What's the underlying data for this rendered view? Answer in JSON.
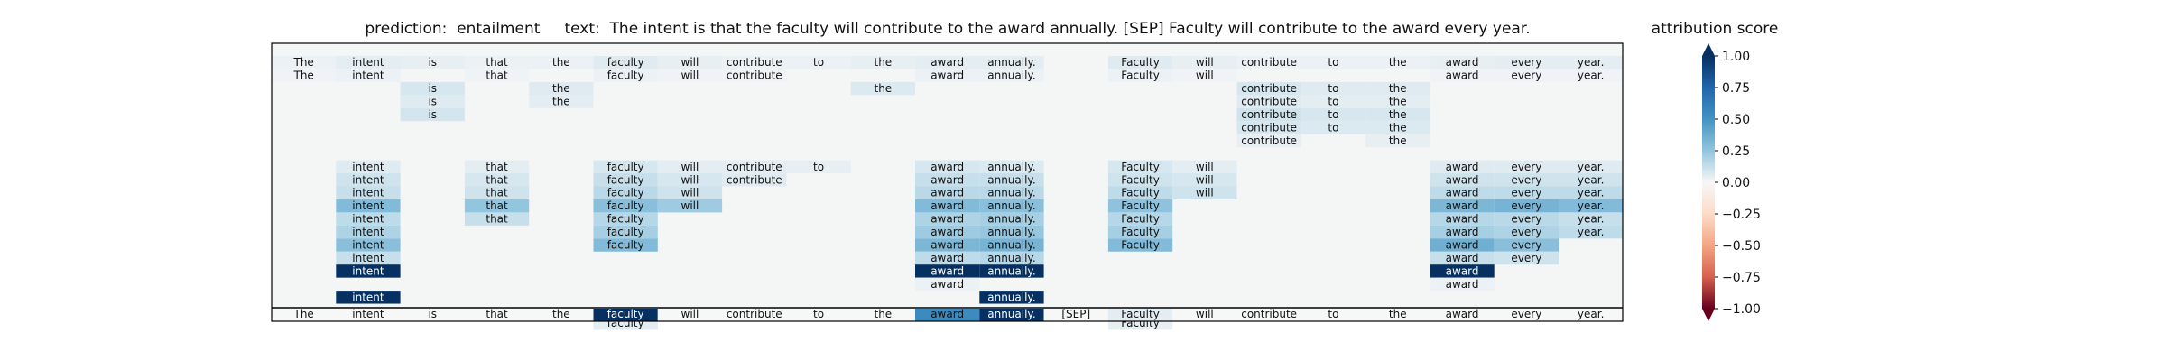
{
  "header": {
    "prediction_label": "prediction:",
    "prediction_value": "entailment",
    "text_label": "text:",
    "text_value": "The intent is that the faculty will contribute to the award annually. [SEP] Faculty will contribute to the award every year."
  },
  "chart_data": {
    "type": "heatmap",
    "tokens": [
      "The",
      "intent",
      "is",
      "that",
      "the",
      "faculty",
      "will",
      "contribute",
      "to",
      "the",
      "award",
      "annually.",
      "[SEP]",
      "Faculty",
      "will",
      "contribute",
      "to",
      "the",
      "award",
      "every",
      "year."
    ],
    "layers": [
      {
        "c": [
          0,
          1,
          2,
          3,
          4,
          5,
          6,
          7,
          8,
          9,
          10,
          11,
          13,
          14,
          15,
          16,
          17,
          18,
          19,
          20
        ],
        "v": [
          0.03,
          0.05,
          0.04,
          0.03,
          0.03,
          0.06,
          0.04,
          0.03,
          0.03,
          0.04,
          0.05,
          0.05,
          0.06,
          0.04,
          0.03,
          0.03,
          0.03,
          0.04,
          0.05,
          0.05
        ]
      },
      {
        "c": [
          0,
          1,
          3,
          5,
          6,
          7,
          10,
          11,
          13,
          14,
          18,
          19,
          20
        ],
        "v": [
          0.02,
          0.03,
          0.02,
          0.03,
          0.02,
          0.02,
          0.03,
          0.03,
          0.03,
          0.02,
          0.02,
          0.02,
          0.02
        ]
      },
      {
        "c": [
          2,
          4,
          9,
          15,
          16,
          17
        ],
        "v": [
          0.08,
          0.06,
          0.07,
          0.08,
          0.06,
          0.06
        ]
      },
      {
        "c": [
          2,
          4,
          15,
          16,
          17
        ],
        "v": [
          0.06,
          0.05,
          0.06,
          0.05,
          0.05
        ]
      },
      {
        "c": [
          2,
          15,
          16,
          17
        ],
        "v": [
          0.09,
          0.1,
          0.08,
          0.08
        ]
      },
      {
        "c": [
          15,
          16,
          17
        ],
        "v": [
          0.08,
          0.07,
          0.07
        ]
      },
      {
        "c": [
          15,
          17
        ],
        "v": [
          0.04,
          0.04
        ]
      },
      {
        "c": [],
        "v": []
      },
      {
        "c": [
          1,
          3,
          5,
          6,
          7,
          8,
          10,
          11,
          13,
          14,
          18,
          19,
          20
        ],
        "v": [
          0.06,
          0.05,
          0.08,
          0.05,
          0.05,
          0.04,
          0.08,
          0.07,
          0.08,
          0.05,
          0.06,
          0.06,
          0.06
        ]
      },
      {
        "c": [
          1,
          3,
          5,
          6,
          7,
          10,
          11,
          13,
          14,
          18,
          19,
          20
        ],
        "v": [
          0.1,
          0.08,
          0.12,
          0.08,
          0.06,
          0.12,
          0.12,
          0.1,
          0.08,
          0.1,
          0.1,
          0.1
        ]
      },
      {
        "c": [
          1,
          3,
          5,
          6,
          10,
          11,
          13,
          14,
          18,
          19,
          20
        ],
        "v": [
          0.12,
          0.1,
          0.15,
          0.1,
          0.15,
          0.15,
          0.14,
          0.1,
          0.14,
          0.14,
          0.14
        ]
      },
      {
        "c": [
          1,
          3,
          5,
          6,
          10,
          11,
          13,
          18,
          19,
          20
        ],
        "v": [
          0.3,
          0.25,
          0.28,
          0.22,
          0.3,
          0.28,
          0.26,
          0.32,
          0.34,
          0.3
        ]
      },
      {
        "c": [
          1,
          3,
          5,
          10,
          11,
          13,
          18,
          19,
          20
        ],
        "v": [
          0.14,
          0.12,
          0.16,
          0.18,
          0.2,
          0.16,
          0.16,
          0.15,
          0.12
        ]
      },
      {
        "c": [
          1,
          5,
          10,
          11,
          13,
          18,
          19,
          20
        ],
        "v": [
          0.18,
          0.2,
          0.22,
          0.24,
          0.2,
          0.2,
          0.18,
          0.14
        ]
      },
      {
        "c": [
          1,
          5,
          10,
          11,
          13,
          18,
          19
        ],
        "v": [
          0.28,
          0.3,
          0.32,
          0.34,
          0.3,
          0.36,
          0.28
        ]
      },
      {
        "c": [
          1,
          10,
          11,
          18,
          19
        ],
        "v": [
          0.12,
          0.14,
          0.16,
          0.12,
          0.1
        ]
      },
      {
        "c": [
          1,
          10,
          11,
          18
        ],
        "v": [
          1.0,
          1.0,
          1.0,
          1.0
        ]
      },
      {
        "c": [
          10,
          18
        ],
        "v": [
          0.03,
          0.03
        ]
      },
      {
        "c": [
          1,
          11
        ],
        "v": [
          1.0,
          1.0
        ]
      },
      {
        "c": [],
        "v": []
      },
      {
        "c": [
          5,
          13
        ],
        "v": [
          0.05,
          0.04
        ]
      }
    ],
    "attribution": [
      0.0,
      0.0,
      0.0,
      0.0,
      0.0,
      1.0,
      0.0,
      0.0,
      0.0,
      0.0,
      0.55,
      1.0,
      0.0,
      0.05,
      0.0,
      0.0,
      0.0,
      0.0,
      0.0,
      0.0,
      0.0
    ],
    "colorbar": {
      "label": "attribution score",
      "ticks": [
        "1.00",
        "0.75",
        "0.50",
        "0.25",
        "0.00",
        "−0.25",
        "−0.50",
        "−0.75",
        "−1.00"
      ],
      "range": [
        -1,
        1
      ],
      "colormap": "RdBu"
    }
  }
}
